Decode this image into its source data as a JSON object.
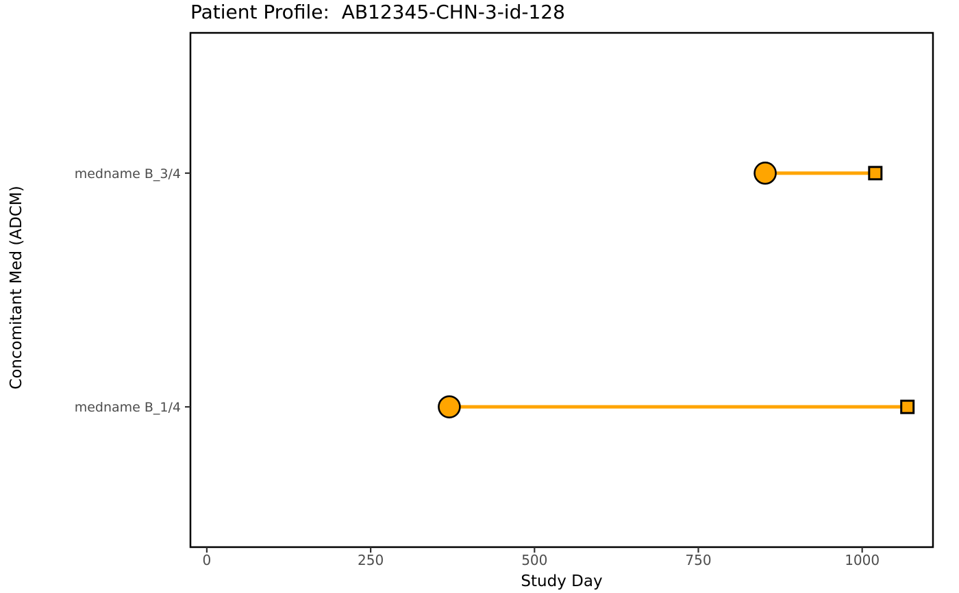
{
  "title": "Patient Profile:  AB12345-CHN-3-id-128",
  "chart_data": {
    "type": "segment-timeline",
    "title": "Patient Profile:  AB12345-CHN-3-id-128",
    "xlabel": "Study Day",
    "ylabel": "Concomitant Med (ADCM)",
    "xlim": [
      -25,
      1108
    ],
    "x_ticks": [
      0,
      250,
      500,
      750,
      1000
    ],
    "ylim": [
      0.4,
      2.6
    ],
    "categories": [
      {
        "label": "medname B_1/4",
        "pos": 1
      },
      {
        "label": "medname B_3/4",
        "pos": 2
      }
    ],
    "segments": [
      {
        "category": "medname B_1/4",
        "pos": 1,
        "start_day": 370,
        "end_day": 1069
      },
      {
        "category": "medname B_3/4",
        "pos": 2,
        "start_day": 852,
        "end_day": 1020
      }
    ],
    "marker_start": "circle",
    "marker_end": "square",
    "legend": "none",
    "grid": "off",
    "colors": {
      "segment": "#FFA500",
      "marker_fill": "#FFA500",
      "marker_stroke": "#000000",
      "axis_text": "#4D4D4D",
      "axis_title": "#000000",
      "panel_border": "#000000",
      "tick_mark": "#333333",
      "background": "#FFFFFF"
    }
  }
}
